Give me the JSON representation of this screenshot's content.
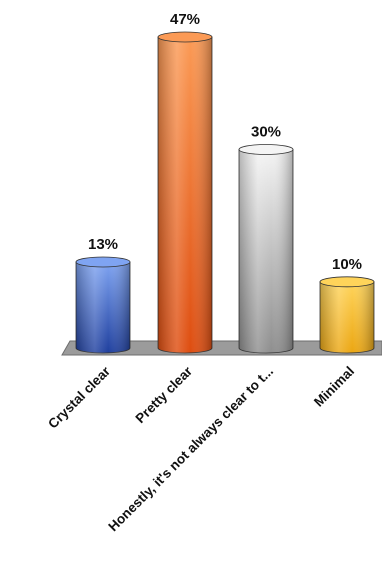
{
  "chart_data": {
    "type": "bar",
    "title": "",
    "xlabel": "",
    "ylabel": "",
    "categories": [
      "Crystal clear",
      "Pretty clear",
      "Honestly, it's not always clear to t...",
      "Minimal"
    ],
    "values": [
      13,
      47,
      30,
      10
    ],
    "value_labels": [
      "13%",
      "47%",
      "30%",
      "10%"
    ],
    "ylim": [
      0,
      47
    ],
    "grid": false,
    "legend": "none",
    "colors": [
      {
        "top": "#7fa4f2",
        "bottom": "#1f3f9e"
      },
      {
        "top": "#fb9a55",
        "bottom": "#de4d10"
      },
      {
        "top": "#f4f4f4",
        "bottom": "#8e8e8e"
      },
      {
        "top": "#ffd45a",
        "bottom": "#eba612"
      }
    ]
  }
}
